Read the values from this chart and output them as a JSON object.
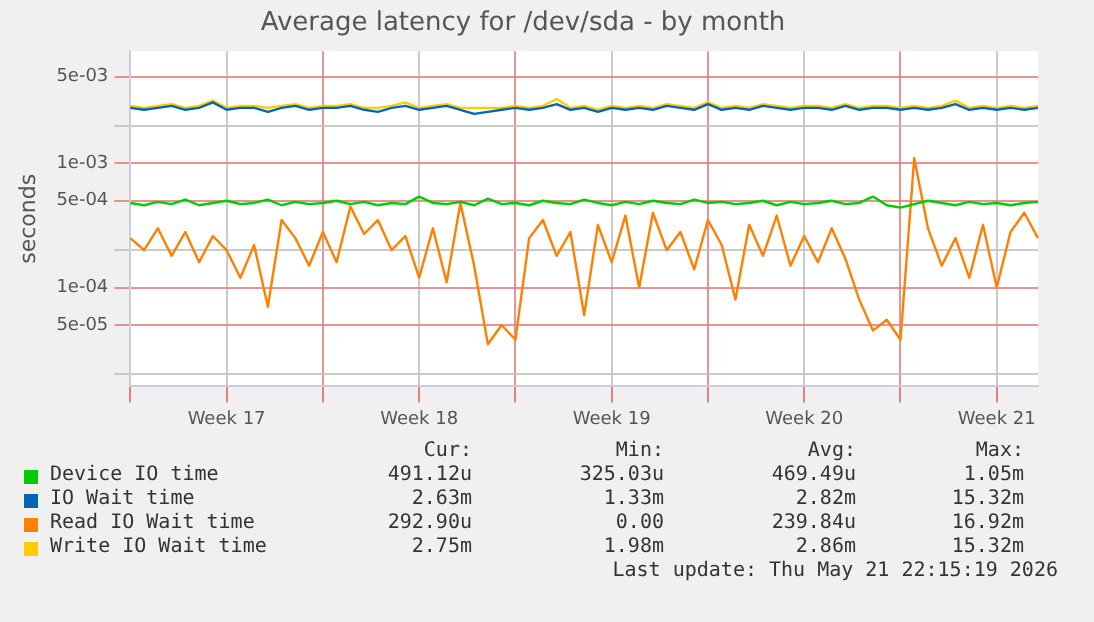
{
  "chart_data": {
    "type": "line",
    "title": "Average latency for /dev/sda - by month",
    "ylabel": "seconds",
    "log": "y",
    "grid": true,
    "legend": "bottom",
    "marker": "none",
    "line_style": "solid",
    "categories": [
      null,
      null,
      null,
      null,
      null,
      null,
      null,
      "Week 17",
      null,
      null,
      null,
      null,
      null,
      null,
      null,
      null,
      null,
      null,
      null,
      null,
      null,
      "Week 18",
      null,
      null,
      null,
      null,
      null,
      null,
      null,
      null,
      null,
      null,
      null,
      null,
      null,
      "Week 19",
      null,
      null,
      null,
      null,
      null,
      null,
      null,
      null,
      null,
      null,
      null,
      null,
      null,
      "Week 20",
      null,
      null,
      null,
      null,
      null,
      null,
      null,
      null,
      null,
      null,
      null,
      null,
      null,
      "Week 21",
      null,
      null,
      null
    ],
    "ylim": [
      1.6e-05,
      0.008
    ],
    "yticks": [
      {
        "value": 2e-05,
        "label": null
      },
      {
        "value": 5e-05,
        "label": "5e-05"
      },
      {
        "value": 0.0001,
        "label": "1e-04"
      },
      {
        "value": 0.0002,
        "label": null
      },
      {
        "value": 0.0005,
        "label": "5e-04"
      },
      {
        "value": 0.001,
        "label": "1e-03"
      },
      {
        "value": 0.002,
        "label": null
      },
      {
        "value": 0.005,
        "label": "5e-03"
      }
    ],
    "series": [
      {
        "name": "Device IO time",
        "color": "#00cc00",
        "values": [
          0.00048,
          0.00046,
          0.00049,
          0.00047,
          0.00051,
          0.00046,
          0.00048,
          0.0005,
          0.00047,
          0.00048,
          0.00051,
          0.00046,
          0.00049,
          0.00047,
          0.00048,
          0.0005,
          0.00047,
          0.00049,
          0.00046,
          0.00048,
          0.00047,
          0.00054,
          0.00048,
          0.00047,
          0.00049,
          0.00046,
          0.00052,
          0.00047,
          0.00048,
          0.00046,
          0.0005,
          0.00048,
          0.00047,
          0.00051,
          0.00048,
          0.00046,
          0.00049,
          0.00047,
          0.0005,
          0.00048,
          0.00047,
          0.00051,
          0.00048,
          0.00049,
          0.00047,
          0.00048,
          0.0005,
          0.00046,
          0.00049,
          0.00047,
          0.00048,
          0.0005,
          0.00047,
          0.00048,
          0.00054,
          0.00046,
          0.00044,
          0.00047,
          0.0005,
          0.00048,
          0.00046,
          0.00049,
          0.00047,
          0.00048,
          0.00046,
          0.00048,
          0.00049
        ]
      },
      {
        "name": "IO Wait time",
        "color": "#0066b3",
        "values": [
          0.0028,
          0.0027,
          0.0028,
          0.0029,
          0.0027,
          0.0028,
          0.0031,
          0.0027,
          0.0028,
          0.0028,
          0.0026,
          0.0028,
          0.0029,
          0.0027,
          0.0028,
          0.0028,
          0.0029,
          0.0027,
          0.0026,
          0.0028,
          0.0029,
          0.0027,
          0.0028,
          0.0029,
          0.0027,
          0.0025,
          0.0026,
          0.0027,
          0.0028,
          0.0027,
          0.0028,
          0.003,
          0.0027,
          0.0028,
          0.0026,
          0.0028,
          0.0027,
          0.0028,
          0.0027,
          0.0029,
          0.0028,
          0.0027,
          0.003,
          0.0027,
          0.0028,
          0.0027,
          0.0029,
          0.0028,
          0.0027,
          0.0028,
          0.0028,
          0.0027,
          0.0029,
          0.0027,
          0.0028,
          0.0028,
          0.0027,
          0.0028,
          0.0027,
          0.0028,
          0.003,
          0.0027,
          0.0028,
          0.0027,
          0.0028,
          0.0027,
          0.0028
        ]
      },
      {
        "name": "Read IO Wait time",
        "color": "#ff8000",
        "values": [
          0.00025,
          0.0002,
          0.0003,
          0.00018,
          0.00028,
          0.00016,
          0.00026,
          0.0002,
          0.00012,
          0.00022,
          7e-05,
          0.00035,
          0.00025,
          0.00015,
          0.00028,
          0.00016,
          0.00045,
          0.00027,
          0.00035,
          0.0002,
          0.00026,
          0.00012,
          0.0003,
          0.00011,
          0.00048,
          0.00015,
          3.5e-05,
          5e-05,
          3.8e-05,
          0.00025,
          0.00035,
          0.00018,
          0.00028,
          6e-05,
          0.00032,
          0.00016,
          0.00038,
          0.0001,
          0.0004,
          0.0002,
          0.00028,
          0.00014,
          0.00035,
          0.00022,
          8e-05,
          0.00032,
          0.00018,
          0.00038,
          0.00015,
          0.00026,
          0.00016,
          0.0003,
          0.00017,
          8e-05,
          4.5e-05,
          5.5e-05,
          3.8e-05,
          0.0011,
          0.0003,
          0.00015,
          0.00025,
          0.00012,
          0.00032,
          0.0001,
          0.00028,
          0.0004,
          0.00025
        ]
      },
      {
        "name": "Write IO Wait time",
        "color": "#ffcc00",
        "values": [
          0.0029,
          0.0028,
          0.0029,
          0.003,
          0.0028,
          0.0029,
          0.0032,
          0.0028,
          0.0029,
          0.0029,
          0.0028,
          0.0029,
          0.003,
          0.0028,
          0.0029,
          0.0029,
          0.003,
          0.0028,
          0.0028,
          0.0029,
          0.0031,
          0.0028,
          0.0029,
          0.003,
          0.0028,
          0.0028,
          0.0028,
          0.0028,
          0.0029,
          0.0028,
          0.0029,
          0.0033,
          0.0028,
          0.0029,
          0.0027,
          0.0029,
          0.0028,
          0.0029,
          0.0028,
          0.003,
          0.0029,
          0.0028,
          0.0031,
          0.0028,
          0.0029,
          0.0028,
          0.003,
          0.0029,
          0.0028,
          0.0029,
          0.0029,
          0.0028,
          0.003,
          0.0028,
          0.0029,
          0.0029,
          0.0028,
          0.0029,
          0.0028,
          0.0029,
          0.0032,
          0.0028,
          0.0029,
          0.0028,
          0.0029,
          0.0028,
          0.0029
        ]
      }
    ],
    "annotations": [
      "Cur:",
      "Min:",
      "Avg:",
      "Max:",
      "491.12u",
      "325.03u",
      "469.49u",
      "1.05m",
      "2.63m",
      "1.33m",
      "2.82m",
      "15.32m",
      "292.90u",
      "0.00",
      "239.84u",
      "16.92m",
      "2.75m",
      "1.98m",
      "2.86m",
      "15.32m",
      "Last update: Thu May 21 22:15:19 2026"
    ]
  }
}
